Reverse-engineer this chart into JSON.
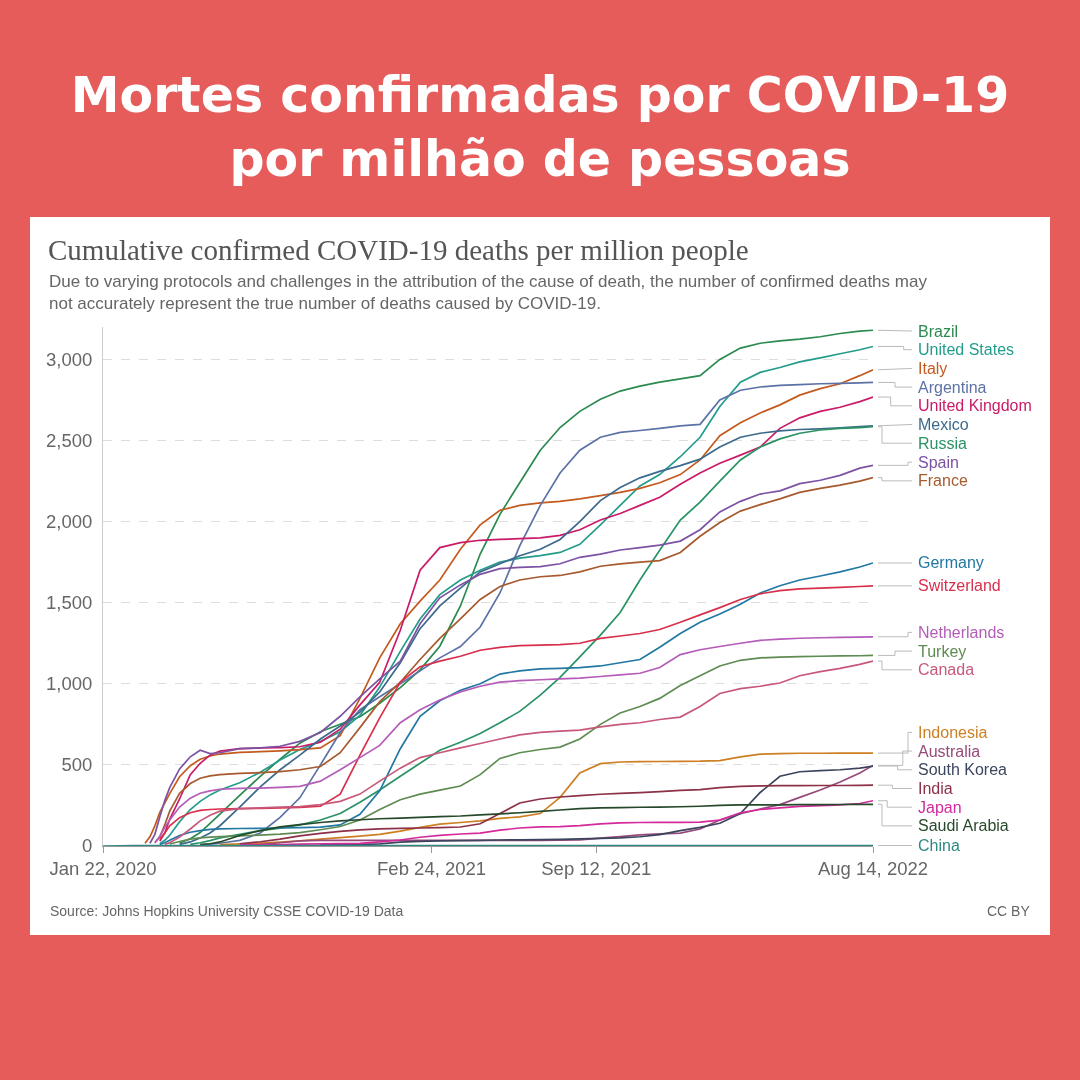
{
  "chart_data": {
    "type": "line",
    "title": "Mortes confirmadas por COVID-19 por milhão de pessoas",
    "subtitle": "Cumulative confirmed COVID-19 deaths per million people",
    "annotations": [
      "Due to varying protocols and challenges in the attribution of the cause of death, the number of confirmed deaths may not accurately represent the true number of deaths caused by COVID-19.",
      "Source: Johns Hopkins University CSSE COVID-19 Data",
      "CC BY"
    ],
    "x": [
      "2020-01-22",
      "2020-03-01",
      "2020-03-13",
      "2020-03-19",
      "2020-03-25",
      "2020-03-31",
      "2020-04-06",
      "2020-04-12",
      "2020-04-24",
      "2020-05-07",
      "2020-05-19",
      "2020-05-31",
      "2020-06-12",
      "2020-07-06",
      "2020-07-31",
      "2020-08-24",
      "2020-09-17",
      "2020-10-12",
      "2020-11-05",
      "2020-11-29",
      "2020-12-23",
      "2021-01-17",
      "2021-02-10",
      "2021-03-06",
      "2021-03-31",
      "2021-04-24",
      "2021-05-18",
      "2021-06-11",
      "2021-07-06",
      "2021-07-30",
      "2021-08-23",
      "2021-09-17",
      "2021-10-11",
      "2021-11-04",
      "2021-11-28",
      "2021-12-23",
      "2022-01-16",
      "2022-02-09",
      "2022-03-06",
      "2022-03-30",
      "2022-04-23",
      "2022-05-17",
      "2022-06-11",
      "2022-07-05",
      "2022-07-29",
      "2022-08-14"
    ],
    "xlim": [
      "2020-01-22",
      "2022-08-14"
    ],
    "xticks": [
      {
        "value": "2020-01-22",
        "label": "Jan 22, 2020"
      },
      {
        "value": "2021-02-24",
        "label": "Feb 24, 2021"
      },
      {
        "value": "2021-09-12",
        "label": "Sep 12, 2021"
      },
      {
        "value": "2022-08-14",
        "label": "Aug 14, 2022"
      }
    ],
    "ylim": [
      0,
      3200
    ],
    "yticks": [
      0,
      500,
      {
        "value": 1000,
        "label": "1,000"
      },
      {
        "value": 1500,
        "label": "1,500"
      },
      {
        "value": 2000,
        "label": "2,000"
      },
      {
        "value": 2500,
        "label": "2,500"
      },
      {
        "value": 3000,
        "label": "3,000"
      }
    ],
    "grid": "y",
    "series": [
      {
        "name": "Brazil",
        "color": "#2a8a4f",
        "values": [
          null,
          null,
          null,
          null,
          null,
          null,
          null,
          null,
          18,
          45,
          83,
          140,
          196,
          312,
          430,
          535,
          634,
          705,
          751,
          797,
          880,
          976,
          1086,
          1232,
          1480,
          1800,
          2045,
          2240,
          2440,
          2580,
          2680,
          2755,
          2805,
          2835,
          2860,
          2880,
          2900,
          3000,
          3070,
          3100,
          3115,
          3125,
          3140,
          3160,
          3175,
          3180
        ]
      },
      {
        "name": "United States",
        "color": "#249c8c",
        "values": [
          null,
          null,
          null,
          null,
          null,
          14,
          35,
          66,
          150,
          225,
          275,
          315,
          345,
          390,
          455,
          530,
          595,
          645,
          705,
          805,
          980,
          1200,
          1400,
          1550,
          1640,
          1700,
          1750,
          1775,
          1790,
          1810,
          1860,
          1980,
          2100,
          2220,
          2290,
          2400,
          2520,
          2710,
          2860,
          2920,
          2950,
          2985,
          3010,
          3035,
          3060,
          3080
        ]
      },
      {
        "name": "Italy",
        "color": "#c45a1e",
        "values": [
          null,
          null,
          17,
          57,
          124,
          207,
          265,
          323,
          427,
          495,
          535,
          555,
          567,
          577,
          582,
          587,
          594,
          605,
          680,
          910,
          1160,
          1370,
          1510,
          1640,
          1830,
          1980,
          2070,
          2100,
          2115,
          2125,
          2140,
          2160,
          2180,
          2205,
          2240,
          2290,
          2380,
          2530,
          2610,
          2670,
          2720,
          2780,
          2820,
          2850,
          2900,
          2936
        ]
      },
      {
        "name": "Argentina",
        "color": "#5c72a6",
        "values": [
          null,
          null,
          null,
          null,
          null,
          null,
          null,
          null,
          null,
          null,
          8,
          12,
          17,
          35,
          80,
          176,
          297,
          500,
          700,
          840,
          920,
          1000,
          1080,
          1160,
          1230,
          1350,
          1560,
          1850,
          2100,
          2300,
          2440,
          2520,
          2550,
          2562,
          2575,
          2590,
          2600,
          2750,
          2810,
          2830,
          2840,
          2845,
          2850,
          2853,
          2856,
          2858
        ]
      },
      {
        "name": "United Kingdom",
        "color": "#c91b68",
        "values": [
          null,
          null,
          null,
          null,
          null,
          30,
          80,
          165,
          290,
          440,
          510,
          560,
          585,
          600,
          605,
          607,
          612,
          640,
          720,
          870,
          1010,
          1330,
          1700,
          1840,
          1870,
          1885,
          1890,
          1895,
          1900,
          1915,
          1950,
          2010,
          2050,
          2100,
          2150,
          2230,
          2300,
          2360,
          2410,
          2460,
          2575,
          2640,
          2680,
          2705,
          2740,
          2768
        ]
      },
      {
        "name": "Mexico",
        "color": "#3d6a8c",
        "values": [
          null,
          null,
          null,
          null,
          null,
          null,
          null,
          null,
          10,
          25,
          50,
          80,
          125,
          240,
          365,
          470,
          560,
          660,
          740,
          825,
          950,
          1130,
          1340,
          1480,
          1590,
          1690,
          1740,
          1790,
          1830,
          1890,
          2000,
          2130,
          2210,
          2270,
          2310,
          2345,
          2385,
          2460,
          2520,
          2545,
          2560,
          2568,
          2572,
          2578,
          2586,
          2591
        ]
      },
      {
        "name": "Russia",
        "color": "#2a9365",
        "values": [
          null,
          null,
          null,
          null,
          null,
          null,
          null,
          null,
          null,
          10,
          20,
          33,
          50,
          72,
          95,
          110,
          130,
          160,
          200,
          270,
          345,
          430,
          510,
          590,
          640,
          694,
          760,
          830,
          930,
          1040,
          1166,
          1300,
          1440,
          1640,
          1823,
          2010,
          2120,
          2250,
          2380,
          2460,
          2510,
          2545,
          2565,
          2575,
          2580,
          2585
        ]
      },
      {
        "name": "Spain",
        "color": "#7c52a3",
        "values": [
          null,
          null,
          null,
          17,
          72,
          180,
          280,
          360,
          475,
          550,
          590,
          570,
          575,
          600,
          605,
          615,
          645,
          700,
          800,
          920,
          1030,
          1140,
          1370,
          1530,
          1610,
          1675,
          1710,
          1718,
          1722,
          1740,
          1780,
          1800,
          1825,
          1840,
          1855,
          1880,
          1950,
          2060,
          2125,
          2170,
          2190,
          2234,
          2255,
          2285,
          2330,
          2347
        ]
      },
      {
        "name": "France",
        "color": "#a65a2e",
        "values": [
          null,
          null,
          null,
          null,
          20,
          55,
          130,
          215,
          325,
          385,
          418,
          432,
          440,
          448,
          452,
          458,
          470,
          490,
          575,
          730,
          890,
          1010,
          1150,
          1280,
          1400,
          1520,
          1600,
          1640,
          1660,
          1668,
          1690,
          1725,
          1740,
          1750,
          1760,
          1810,
          1910,
          1995,
          2065,
          2105,
          2140,
          2180,
          2205,
          2225,
          2250,
          2271
        ]
      },
      {
        "name": "Germany",
        "color": "#2278a3",
        "values": [
          null,
          null,
          null,
          null,
          null,
          9,
          20,
          36,
          65,
          85,
          95,
          102,
          105,
          108,
          109,
          111,
          113,
          116,
          130,
          195,
          340,
          600,
          800,
          895,
          960,
          1000,
          1060,
          1080,
          1092,
          1095,
          1100,
          1110,
          1130,
          1150,
          1225,
          1310,
          1380,
          1430,
          1490,
          1560,
          1605,
          1640,
          1665,
          1690,
          1720,
          1745
        ]
      },
      {
        "name": "Switzerland",
        "color": "#d8304c",
        "values": [
          null,
          null,
          null,
          null,
          null,
          40,
          80,
          125,
          175,
          205,
          220,
          225,
          228,
          230,
          232,
          235,
          238,
          245,
          320,
          560,
          790,
          1010,
          1105,
          1140,
          1170,
          1207,
          1225,
          1235,
          1238,
          1242,
          1250,
          1280,
          1295,
          1310,
          1335,
          1380,
          1425,
          1470,
          1520,
          1555,
          1575,
          1585,
          1590,
          1595,
          1600,
          1604
        ]
      },
      {
        "name": "Netherlands",
        "color": "#b45cb8",
        "values": [
          null,
          null,
          null,
          null,
          20,
          60,
          115,
          160,
          240,
          295,
          325,
          340,
          350,
          355,
          357,
          362,
          368,
          400,
          470,
          545,
          620,
          760,
          840,
          900,
          950,
          985,
          1010,
          1020,
          1025,
          1030,
          1035,
          1045,
          1055,
          1065,
          1100,
          1180,
          1210,
          1230,
          1250,
          1268,
          1276,
          1281,
          1284,
          1286,
          1288,
          1290
        ]
      },
      {
        "name": "Turkey",
        "color": "#5f8c52",
        "values": [
          null,
          null,
          null,
          null,
          null,
          null,
          null,
          12,
          28,
          42,
          50,
          55,
          58,
          63,
          67,
          73,
          82,
          100,
          120,
          160,
          225,
          285,
          320,
          345,
          370,
          440,
          540,
          575,
          595,
          610,
          660,
          750,
          820,
          860,
          910,
          990,
          1050,
          1110,
          1145,
          1160,
          1165,
          1168,
          1170,
          1172,
          1173,
          1175
        ]
      },
      {
        "name": "Canada",
        "color": "#c8587a",
        "values": [
          null,
          null,
          null,
          null,
          null,
          null,
          10,
          20,
          55,
          105,
          155,
          190,
          215,
          230,
          235,
          240,
          243,
          255,
          275,
          320,
          400,
          480,
          545,
          575,
          605,
          632,
          660,
          685,
          700,
          708,
          715,
          735,
          750,
          760,
          780,
          795,
          860,
          940,
          970,
          985,
          1005,
          1050,
          1075,
          1095,
          1120,
          1140
        ]
      },
      {
        "name": "Indonesia",
        "color": "#cd7f22",
        "values": [
          null,
          null,
          null,
          null,
          null,
          null,
          null,
          null,
          null,
          null,
          null,
          null,
          8,
          13,
          18,
          24,
          32,
          42,
          52,
          61,
          72,
          92,
          115,
          135,
          145,
          155,
          170,
          180,
          200,
          300,
          450,
          508,
          518,
          520,
          521,
          522,
          523,
          527,
          550,
          566,
          570,
          572,
          572,
          573,
          573,
          573
        ]
      },
      {
        "name": "Australia",
        "color": "#97497a",
        "values": [
          null,
          null,
          null,
          null,
          null,
          null,
          null,
          null,
          null,
          null,
          null,
          null,
          null,
          null,
          8,
          20,
          32,
          35,
          35,
          35,
          35,
          35,
          35,
          35,
          35,
          35,
          35,
          35,
          35,
          36,
          38,
          48,
          58,
          68,
          75,
          80,
          105,
          160,
          200,
          228,
          255,
          300,
          345,
          395,
          450,
          497
        ]
      },
      {
        "name": "South Korea",
        "color": "#3b465e",
        "values": [
          null,
          null,
          null,
          null,
          null,
          null,
          null,
          null,
          null,
          null,
          null,
          null,
          null,
          null,
          null,
          null,
          null,
          8,
          9,
          10,
          13,
          24,
          29,
          32,
          33,
          35,
          37,
          38,
          39,
          41,
          44,
          47,
          50,
          57,
          70,
          95,
          115,
          140,
          200,
          330,
          430,
          458,
          465,
          470,
          480,
          493
        ]
      },
      {
        "name": "India",
        "color": "#8c3148",
        "values": [
          null,
          null,
          null,
          null,
          null,
          null,
          null,
          null,
          null,
          null,
          null,
          null,
          null,
          14,
          26,
          42,
          62,
          78,
          90,
          99,
          105,
          109,
          111,
          113,
          117,
          137,
          200,
          265,
          290,
          302,
          311,
          319,
          324,
          329,
          335,
          343,
          347,
          360,
          368,
          371,
          372,
          372,
          373,
          373,
          374,
          375
        ]
      },
      {
        "name": "Japan",
        "color": "#d42a9c",
        "values": [
          null,
          null,
          null,
          null,
          null,
          null,
          null,
          null,
          null,
          null,
          null,
          null,
          null,
          8,
          8,
          9,
          12,
          13,
          15,
          16,
          25,
          37,
          54,
          66,
          74,
          80,
          98,
          111,
          118,
          120,
          126,
          137,
          143,
          145,
          146,
          146,
          147,
          160,
          205,
          225,
          235,
          244,
          249,
          253,
          262,
          279
        ]
      },
      {
        "name": "Saudi Arabia",
        "color": "#27492b",
        "values": [
          null,
          null,
          null,
          null,
          null,
          null,
          null,
          null,
          null,
          null,
          9,
          14,
          25,
          65,
          95,
          118,
          132,
          145,
          155,
          162,
          168,
          172,
          176,
          181,
          185,
          192,
          198,
          205,
          213,
          222,
          230,
          235,
          237,
          239,
          240,
          242,
          245,
          250,
          253,
          254,
          254,
          255,
          255,
          256,
          257,
          257
        ]
      },
      {
        "name": "China",
        "color": "#2f8882",
        "values": [
          0,
          2,
          2,
          2,
          2,
          2,
          2,
          2,
          3,
          3,
          3,
          3,
          3,
          3,
          3,
          3,
          3,
          3,
          3,
          3,
          3,
          3,
          3,
          3,
          3,
          3,
          3,
          3,
          3,
          3,
          3,
          3,
          3,
          3,
          3,
          3,
          3,
          3,
          3,
          3,
          3,
          3,
          3,
          3,
          3,
          3
        ]
      }
    ]
  }
}
